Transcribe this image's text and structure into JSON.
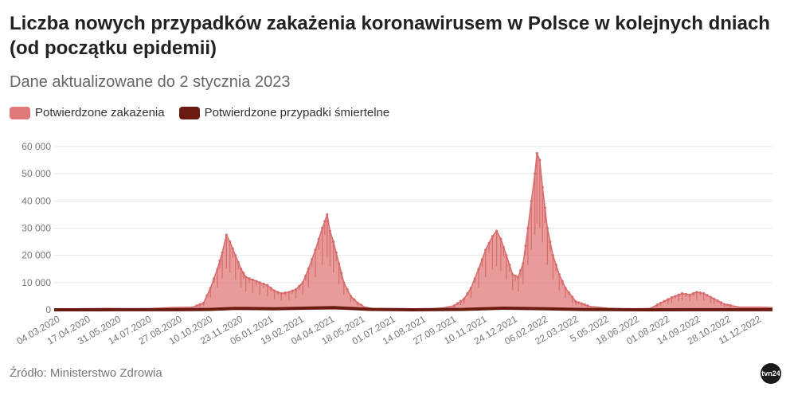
{
  "header": {
    "title": "Liczba nowych przypadków zakażenia koronawirusem w Polsce w kolejnych dniach (od początku epidemii)",
    "subtitle": "Dane aktualizowane do 2 stycznia 2023"
  },
  "footer": {
    "source": "Źródło: Ministerstwo Zdrowia",
    "logo_text": "tvn24"
  },
  "colors": {
    "cases": "#e07a7a",
    "deaths": "#6b1a10",
    "grid": "#e6e6e6",
    "background": "#ffffff"
  },
  "chart_data": {
    "type": "area",
    "x_type": "date",
    "x_range": [
      "2020-03-04",
      "2023-01-02"
    ],
    "ylim": [
      0,
      60000
    ],
    "y_ticks": [
      0,
      10000,
      20000,
      30000,
      40000,
      50000,
      60000
    ],
    "y_tick_labels": [
      "0",
      "10 000",
      "20 000",
      "30 000",
      "40 000",
      "50 000",
      "60 000"
    ],
    "x_tick_labels": [
      "04.03.2020",
      "17.04.2020",
      "31.05.2020",
      "14.07.2020",
      "27.08.2020",
      "10.10.2020",
      "23.11.2020",
      "06.01.2021",
      "19.02.2021",
      "04.04.2021",
      "18.05.2021",
      "01.07.2021",
      "14.08.2021",
      "27.09.2021",
      "10.11.2021",
      "24.12.2021",
      "06.02.2022",
      "22.03.2022",
      "5.05.2022",
      "18.06.2022",
      "01.08.2022",
      "14.09.2022",
      "28.10.2022",
      "11.12.2022"
    ],
    "grid": true,
    "legend_position": "top-left",
    "series": [
      {
        "name": "Potwierdzone zakażenia",
        "color": "#e07a7a",
        "points": [
          [
            "2020-03-04",
            0
          ],
          [
            "2020-04-10",
            400
          ],
          [
            "2020-05-15",
            500
          ],
          [
            "2020-06-20",
            350
          ],
          [
            "2020-07-20",
            450
          ],
          [
            "2020-08-20",
            850
          ],
          [
            "2020-09-20",
            1000
          ],
          [
            "2020-10-05",
            2500
          ],
          [
            "2020-10-15",
            8000
          ],
          [
            "2020-10-25",
            15000
          ],
          [
            "2020-11-01",
            21000
          ],
          [
            "2020-11-07",
            27500
          ],
          [
            "2020-11-12",
            25000
          ],
          [
            "2020-11-20",
            20000
          ],
          [
            "2020-11-28",
            15000
          ],
          [
            "2020-12-05",
            12000
          ],
          [
            "2020-12-15",
            11000
          ],
          [
            "2020-12-25",
            10000
          ],
          [
            "2021-01-05",
            9000
          ],
          [
            "2021-01-15",
            7000
          ],
          [
            "2021-01-25",
            6000
          ],
          [
            "2021-02-05",
            6500
          ],
          [
            "2021-02-15",
            7500
          ],
          [
            "2021-02-25",
            10000
          ],
          [
            "2021-03-05",
            15000
          ],
          [
            "2021-03-15",
            22000
          ],
          [
            "2021-03-25",
            30000
          ],
          [
            "2021-04-01",
            35000
          ],
          [
            "2021-04-05",
            29000
          ],
          [
            "2021-04-10",
            25000
          ],
          [
            "2021-04-18",
            17000
          ],
          [
            "2021-04-25",
            10000
          ],
          [
            "2021-05-05",
            5000
          ],
          [
            "2021-05-15",
            2500
          ],
          [
            "2021-05-25",
            1000
          ],
          [
            "2021-06-10",
            300
          ],
          [
            "2021-07-01",
            100
          ],
          [
            "2021-08-01",
            150
          ],
          [
            "2021-08-25",
            300
          ],
          [
            "2021-09-15",
            700
          ],
          [
            "2021-10-01",
            1500
          ],
          [
            "2021-10-15",
            4000
          ],
          [
            "2021-10-25",
            8000
          ],
          [
            "2021-11-05",
            15000
          ],
          [
            "2021-11-15",
            22000
          ],
          [
            "2021-11-25",
            27000
          ],
          [
            "2021-12-01",
            29000
          ],
          [
            "2021-12-07",
            26000
          ],
          [
            "2021-12-15",
            20000
          ],
          [
            "2021-12-24",
            13000
          ],
          [
            "2022-01-01",
            12000
          ],
          [
            "2022-01-08",
            17000
          ],
          [
            "2022-01-15",
            30000
          ],
          [
            "2022-01-20",
            40000
          ],
          [
            "2022-01-25",
            50000
          ],
          [
            "2022-01-28",
            57500
          ],
          [
            "2022-02-01",
            55000
          ],
          [
            "2022-02-05",
            45000
          ],
          [
            "2022-02-12",
            30000
          ],
          [
            "2022-02-20",
            20000
          ],
          [
            "2022-03-01",
            13000
          ],
          [
            "2022-03-10",
            8000
          ],
          [
            "2022-03-25",
            3000
          ],
          [
            "2022-04-15",
            1200
          ],
          [
            "2022-05-10",
            600
          ],
          [
            "2022-06-10",
            300
          ],
          [
            "2022-07-10",
            500
          ],
          [
            "2022-07-25",
            2500
          ],
          [
            "2022-08-10",
            4500
          ],
          [
            "2022-08-25",
            6000
          ],
          [
            "2022-09-05",
            5500
          ],
          [
            "2022-09-15",
            6500
          ],
          [
            "2022-09-25",
            6000
          ],
          [
            "2022-10-10",
            4000
          ],
          [
            "2022-10-25",
            2000
          ],
          [
            "2022-11-15",
            1000
          ],
          [
            "2022-12-15",
            1000
          ],
          [
            "2023-01-02",
            800
          ]
        ]
      },
      {
        "name": "Potwierdzone przypadki śmiertelne",
        "color": "#6b1a10",
        "points": [
          [
            "2020-03-04",
            0
          ],
          [
            "2020-06-01",
            20
          ],
          [
            "2020-09-01",
            30
          ],
          [
            "2020-10-15",
            150
          ],
          [
            "2020-11-20",
            500
          ],
          [
            "2021-01-15",
            350
          ],
          [
            "2021-04-10",
            800
          ],
          [
            "2021-06-01",
            150
          ],
          [
            "2021-08-01",
            10
          ],
          [
            "2021-10-15",
            150
          ],
          [
            "2021-12-10",
            600
          ],
          [
            "2022-02-10",
            350
          ],
          [
            "2022-04-01",
            100
          ],
          [
            "2022-07-01",
            10
          ],
          [
            "2022-09-20",
            40
          ],
          [
            "2023-01-02",
            20
          ]
        ]
      }
    ]
  }
}
